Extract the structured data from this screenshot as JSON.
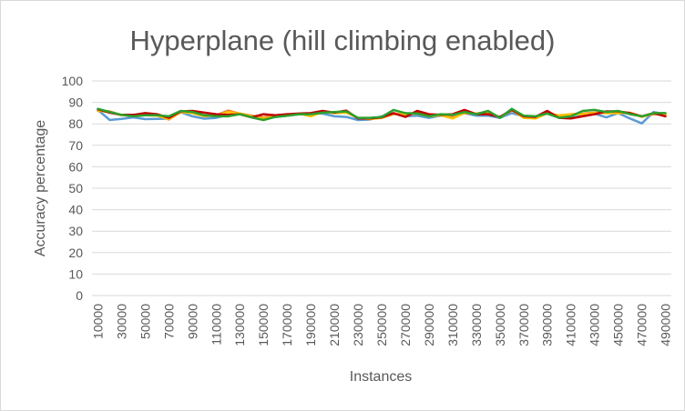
{
  "chart_data": {
    "type": "line",
    "title": "Hyperplane (hill climbing enabled)",
    "xlabel": "Instances",
    "ylabel": "Accuracy percentage",
    "ylim": [
      0,
      100
    ],
    "yticks": [
      0,
      10,
      20,
      30,
      40,
      50,
      60,
      70,
      80,
      90,
      100
    ],
    "x": [
      10000,
      20000,
      30000,
      40000,
      50000,
      60000,
      70000,
      80000,
      90000,
      100000,
      110000,
      120000,
      130000,
      140000,
      150000,
      160000,
      170000,
      180000,
      190000,
      200000,
      210000,
      220000,
      230000,
      240000,
      250000,
      260000,
      270000,
      280000,
      290000,
      300000,
      310000,
      320000,
      330000,
      340000,
      350000,
      360000,
      370000,
      380000,
      390000,
      400000,
      410000,
      420000,
      430000,
      440000,
      450000,
      460000,
      470000,
      480000,
      490000
    ],
    "xtick_labels": [
      "10000",
      "30000",
      "50000",
      "70000",
      "90000",
      "110000",
      "130000",
      "150000",
      "170000",
      "190000",
      "210000",
      "230000",
      "250000",
      "270000",
      "290000",
      "310000",
      "330000",
      "350000",
      "370000",
      "390000",
      "410000",
      "430000",
      "450000",
      "470000",
      "490000"
    ],
    "grid": true,
    "legend": "none",
    "series": [
      {
        "color": "#5B9BD5",
        "values": [
          86.5,
          81.8,
          82.3,
          83.0,
          82.2,
          82.3,
          82.4,
          85.4,
          83.5,
          82.4,
          82.8,
          84.2,
          84.5,
          83.8,
          82.4,
          83.2,
          83.8,
          84.5,
          84.8,
          84.8,
          83.5,
          83.2,
          81.8,
          82.0,
          83.5,
          85.0,
          83.5,
          83.8,
          82.8,
          83.8,
          84.0,
          85.0,
          83.8,
          83.8,
          82.8,
          85.0,
          83.5,
          82.8,
          85.0,
          82.8,
          82.8,
          83.8,
          84.8,
          83.0,
          85.0,
          82.5,
          80.2,
          85.5,
          84.5
        ]
      },
      {
        "color": "#ED7D31",
        "values": [
          86.0,
          85.8,
          84.0,
          83.8,
          84.0,
          84.0,
          82.0,
          85.5,
          85.2,
          83.8,
          84.0,
          86.2,
          84.8,
          83.8,
          83.0,
          84.0,
          84.0,
          84.5,
          84.5,
          85.8,
          85.2,
          85.5,
          82.8,
          82.5,
          82.8,
          84.5,
          84.8,
          85.0,
          84.0,
          84.2,
          83.0,
          85.0,
          84.8,
          85.5,
          83.0,
          86.5,
          83.8,
          82.5,
          85.0,
          83.5,
          84.5,
          84.8,
          85.2,
          85.0,
          85.0,
          85.0,
          83.5,
          84.5,
          84.5
        ]
      },
      {
        "color": "#FFC000",
        "values": [
          86.2,
          85.5,
          84.0,
          84.0,
          84.0,
          83.8,
          82.2,
          85.5,
          85.0,
          83.5,
          84.0,
          85.5,
          84.8,
          83.5,
          82.5,
          83.5,
          83.8,
          84.8,
          83.5,
          85.5,
          85.0,
          85.2,
          82.8,
          82.2,
          82.8,
          84.8,
          84.5,
          84.8,
          83.5,
          84.0,
          82.5,
          85.2,
          84.8,
          85.2,
          83.0,
          86.5,
          82.8,
          82.5,
          85.0,
          84.0,
          84.5,
          84.5,
          85.0,
          85.0,
          85.0,
          85.2,
          83.2,
          85.0,
          84.0
        ]
      },
      {
        "color": "#C00000",
        "values": [
          86.8,
          85.2,
          84.2,
          84.2,
          85.0,
          84.5,
          82.8,
          85.8,
          86.0,
          85.2,
          84.5,
          84.2,
          84.5,
          83.0,
          84.5,
          84.0,
          84.5,
          84.8,
          85.0,
          86.0,
          85.2,
          86.2,
          82.5,
          82.5,
          83.0,
          85.0,
          83.2,
          86.0,
          84.5,
          84.2,
          84.5,
          86.5,
          84.5,
          84.5,
          83.2,
          86.5,
          83.5,
          83.2,
          86.0,
          82.8,
          82.5,
          83.5,
          84.5,
          85.8,
          85.8,
          85.0,
          83.5,
          85.0,
          83.5
        ]
      },
      {
        "color": "#2CA02C",
        "values": [
          87.0,
          85.5,
          84.2,
          83.5,
          84.0,
          84.0,
          83.5,
          86.0,
          85.5,
          84.0,
          83.5,
          83.5,
          84.5,
          83.0,
          81.8,
          83.2,
          83.8,
          84.5,
          84.5,
          85.2,
          85.5,
          85.8,
          82.8,
          82.8,
          83.2,
          86.5,
          85.0,
          84.8,
          83.5,
          84.5,
          84.2,
          85.5,
          84.5,
          86.0,
          82.8,
          87.0,
          83.8,
          83.5,
          84.8,
          82.8,
          83.5,
          86.0,
          86.5,
          85.5,
          86.0,
          84.5,
          83.5,
          85.0,
          85.0
        ]
      }
    ]
  }
}
